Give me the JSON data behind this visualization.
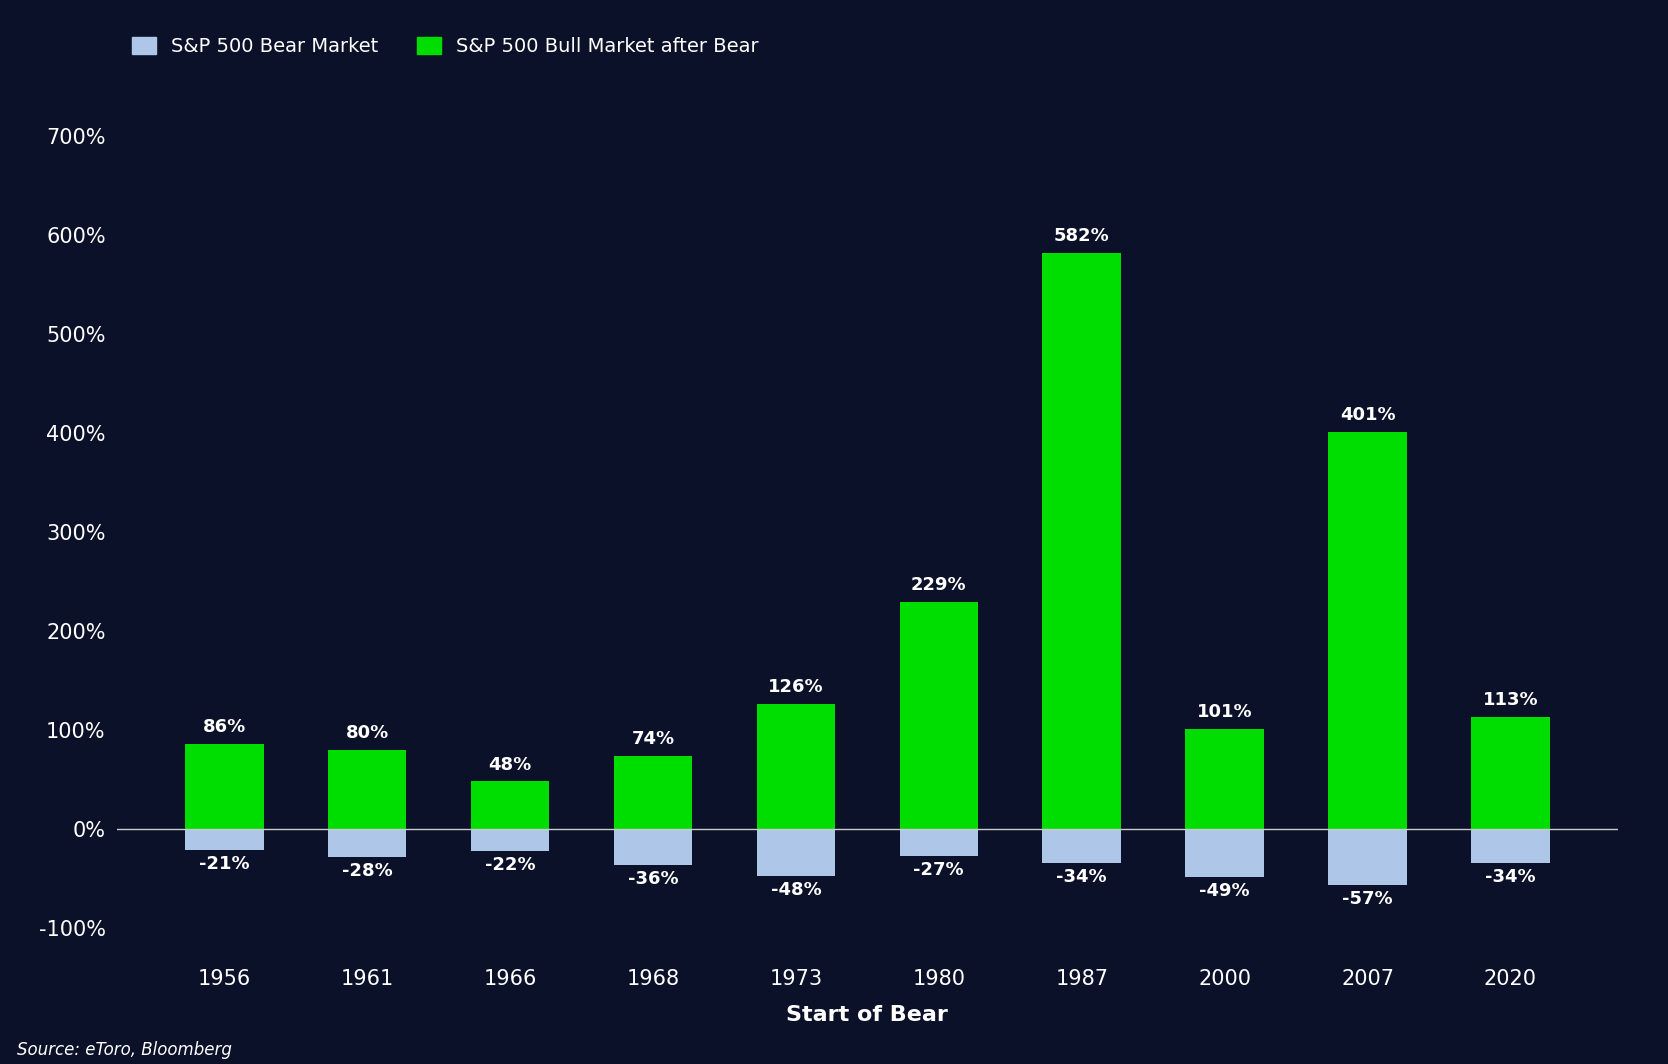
{
  "years": [
    "1956",
    "1961",
    "1966",
    "1968",
    "1973",
    "1980",
    "1987",
    "2000",
    "2007",
    "2020"
  ],
  "bear_values": [
    -21,
    -28,
    -22,
    -36,
    -48,
    -27,
    -34,
    -49,
    -57,
    -34
  ],
  "bull_values": [
    86,
    80,
    48,
    74,
    126,
    229,
    582,
    101,
    401,
    113
  ],
  "bear_labels": [
    "-21%",
    "-28%",
    "-22%",
    "-36%",
    "-48%",
    "-27%",
    "-34%",
    "-49%",
    "-57%",
    "-34%"
  ],
  "bull_labels": [
    "86%",
    "80%",
    "48%",
    "74%",
    "126%",
    "229%",
    "582%",
    "101%",
    "401%",
    "113%"
  ],
  "bear_color": "#aec6e8",
  "bull_color": "#00dd00",
  "background_color": "#0b1128",
  "text_color": "#ffffff",
  "zero_line_color": "#cccccc",
  "xlabel": "Start of Bear",
  "legend_bear": "S&P 500 Bear Market",
  "legend_bull": "S&P 500 Bull Market after Bear",
  "source": "Source: eToro, Bloomberg",
  "yticks": [
    -100,
    0,
    100,
    200,
    300,
    400,
    500,
    600,
    700
  ],
  "ylim": [
    -130,
    730
  ],
  "bar_width": 0.55,
  "title_fontsize": 16,
  "tick_fontsize": 15,
  "label_fontsize": 16,
  "bar_label_fontsize": 13,
  "legend_fontsize": 14
}
